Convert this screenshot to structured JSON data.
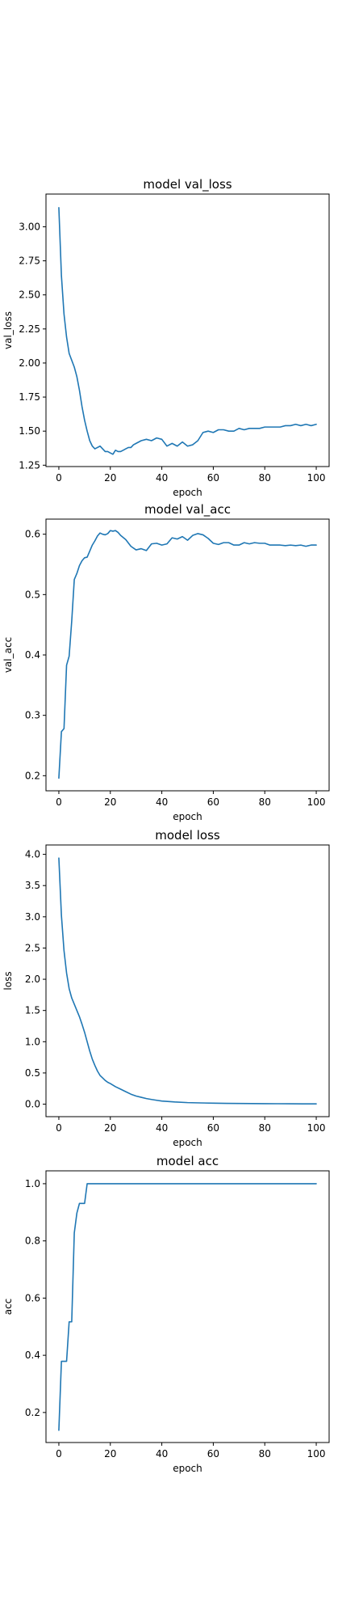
{
  "colors": {
    "line": "#1f77b4",
    "axes": "#000000",
    "background": "#ffffff"
  },
  "chart_data": [
    {
      "type": "line",
      "title": "model val_loss",
      "xlabel": "epoch",
      "ylabel": "val_loss",
      "xlim": [
        -5,
        105
      ],
      "ylim": [
        1.24,
        3.24
      ],
      "xticks": [
        0,
        20,
        40,
        60,
        80,
        100
      ],
      "yticks": [
        1.25,
        1.5,
        1.75,
        2.0,
        2.25,
        2.5,
        2.75,
        3.0
      ],
      "ytick_labels": [
        "1.25",
        "1.50",
        "1.75",
        "2.00",
        "2.25",
        "2.50",
        "2.75",
        "3.00"
      ],
      "grid": false,
      "series": [
        {
          "x": [
            0,
            1,
            2,
            3,
            4,
            5,
            6,
            7,
            8,
            9,
            10,
            11,
            12,
            13,
            14,
            15,
            16,
            17,
            18,
            19,
            20,
            21,
            22,
            23,
            24,
            25,
            26,
            27,
            28,
            29,
            30,
            32,
            34,
            36,
            38,
            40,
            42,
            44,
            46,
            48,
            50,
            52,
            54,
            56,
            58,
            60,
            62,
            64,
            66,
            68,
            70,
            72,
            74,
            76,
            78,
            80,
            82,
            84,
            86,
            88,
            90,
            92,
            94,
            96,
            98,
            100
          ],
          "y": [
            3.14,
            2.64,
            2.36,
            2.19,
            2.07,
            2.02,
            1.97,
            1.9,
            1.8,
            1.68,
            1.58,
            1.5,
            1.43,
            1.39,
            1.37,
            1.38,
            1.39,
            1.37,
            1.35,
            1.35,
            1.34,
            1.33,
            1.36,
            1.35,
            1.35,
            1.36,
            1.37,
            1.38,
            1.38,
            1.4,
            1.41,
            1.43,
            1.44,
            1.43,
            1.45,
            1.44,
            1.39,
            1.41,
            1.39,
            1.42,
            1.39,
            1.4,
            1.43,
            1.49,
            1.5,
            1.49,
            1.51,
            1.51,
            1.5,
            1.5,
            1.52,
            1.51,
            1.52,
            1.52,
            1.52,
            1.53,
            1.53,
            1.53,
            1.53,
            1.54,
            1.54,
            1.55,
            1.54,
            1.55,
            1.54,
            1.55
          ]
        }
      ]
    },
    {
      "type": "line",
      "title": "model val_acc",
      "xlabel": "epoch",
      "ylabel": "val_acc",
      "xlim": [
        -5,
        105
      ],
      "ylim": [
        0.175,
        0.625
      ],
      "xticks": [
        0,
        20,
        40,
        60,
        80,
        100
      ],
      "yticks": [
        0.2,
        0.3,
        0.4,
        0.5,
        0.6
      ],
      "ytick_labels": [
        "0.2",
        "0.3",
        "0.4",
        "0.5",
        "0.6"
      ],
      "grid": false,
      "series": [
        {
          "x": [
            0,
            1,
            2,
            3,
            4,
            5,
            6,
            7,
            8,
            9,
            10,
            11,
            12,
            13,
            14,
            15,
            16,
            17,
            18,
            19,
            20,
            21,
            22,
            23,
            24,
            26,
            28,
            30,
            32,
            34,
            36,
            38,
            40,
            42,
            44,
            46,
            48,
            50,
            52,
            54,
            56,
            58,
            60,
            62,
            64,
            66,
            68,
            70,
            72,
            74,
            76,
            78,
            80,
            82,
            84,
            86,
            88,
            90,
            92,
            94,
            96,
            98,
            100
          ],
          "y": [
            0.196,
            0.273,
            0.278,
            0.383,
            0.398,
            0.456,
            0.525,
            0.535,
            0.548,
            0.556,
            0.561,
            0.562,
            0.572,
            0.582,
            0.589,
            0.597,
            0.602,
            0.6,
            0.599,
            0.601,
            0.606,
            0.605,
            0.606,
            0.603,
            0.598,
            0.591,
            0.58,
            0.574,
            0.576,
            0.573,
            0.584,
            0.585,
            0.582,
            0.584,
            0.594,
            0.592,
            0.596,
            0.59,
            0.598,
            0.601,
            0.599,
            0.593,
            0.585,
            0.583,
            0.586,
            0.586,
            0.582,
            0.582,
            0.586,
            0.584,
            0.586,
            0.585,
            0.585,
            0.582,
            0.582,
            0.582,
            0.581,
            0.582,
            0.581,
            0.582,
            0.58,
            0.582,
            0.582
          ]
        }
      ]
    },
    {
      "type": "line",
      "title": "model loss",
      "xlabel": "epoch",
      "ylabel": "loss",
      "xlim": [
        -5,
        105
      ],
      "ylim": [
        -0.2,
        4.15
      ],
      "xticks": [
        0,
        20,
        40,
        60,
        80,
        100
      ],
      "yticks": [
        0.0,
        0.5,
        1.0,
        1.5,
        2.0,
        2.5,
        3.0,
        3.5,
        4.0
      ],
      "ytick_labels": [
        "0.0",
        "0.5",
        "1.0",
        "1.5",
        "2.0",
        "2.5",
        "3.0",
        "3.5",
        "4.0"
      ],
      "grid": false,
      "series": [
        {
          "x": [
            0,
            1,
            2,
            3,
            4,
            5,
            6,
            7,
            8,
            9,
            10,
            11,
            12,
            13,
            14,
            15,
            16,
            17,
            18,
            19,
            20,
            22,
            24,
            26,
            28,
            30,
            32,
            34,
            36,
            38,
            40,
            45,
            50,
            55,
            60,
            65,
            70,
            75,
            80,
            85,
            90,
            95,
            100
          ],
          "y": [
            3.94,
            3.02,
            2.46,
            2.1,
            1.85,
            1.7,
            1.6,
            1.5,
            1.4,
            1.28,
            1.15,
            1.0,
            0.85,
            0.72,
            0.62,
            0.53,
            0.46,
            0.42,
            0.38,
            0.35,
            0.33,
            0.28,
            0.24,
            0.2,
            0.16,
            0.13,
            0.11,
            0.09,
            0.075,
            0.062,
            0.05,
            0.035,
            0.025,
            0.02,
            0.016,
            0.013,
            0.011,
            0.009,
            0.008,
            0.007,
            0.006,
            0.005,
            0.005
          ]
        }
      ]
    },
    {
      "type": "line",
      "title": "model acc",
      "xlabel": "epoch",
      "ylabel": "acc",
      "xlim": [
        -5,
        105
      ],
      "ylim": [
        0.095,
        1.045
      ],
      "xticks": [
        0,
        20,
        40,
        60,
        80,
        100
      ],
      "yticks": [
        0.2,
        0.4,
        0.6,
        0.8,
        1.0
      ],
      "ytick_labels": [
        "0.2",
        "0.4",
        "0.6",
        "0.8",
        "1.0"
      ],
      "grid": false,
      "series": [
        {
          "x": [
            0,
            1,
            2,
            3,
            4,
            5,
            6,
            7,
            8,
            9,
            10,
            11,
            12,
            20,
            40,
            60,
            80,
            100
          ],
          "y": [
            0.138,
            0.379,
            0.379,
            0.379,
            0.517,
            0.517,
            0.828,
            0.897,
            0.931,
            0.931,
            0.931,
            1.0,
            1.0,
            1.0,
            1.0,
            1.0,
            1.0,
            1.0
          ]
        }
      ]
    }
  ]
}
